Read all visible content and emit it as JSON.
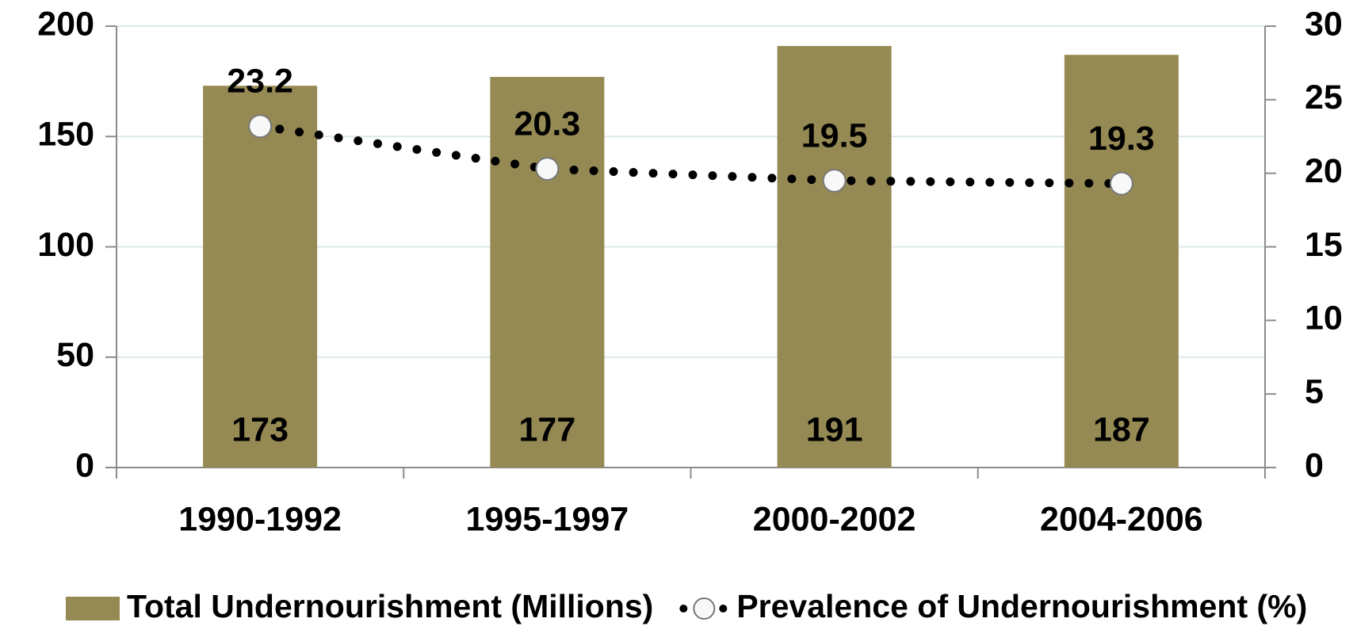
{
  "chart_data": {
    "type": "bar",
    "categories": [
      "1990-1992",
      "1995-1997",
      "2000-2002",
      "2004-2006"
    ],
    "series": [
      {
        "name": "Total Undernourishment (Millions)",
        "type": "bar",
        "color": "#968a54",
        "values": [
          173,
          177,
          191,
          187
        ]
      },
      {
        "name": "Prevalence of Undernourishment (%)",
        "type": "line",
        "axis": "y2",
        "color": "#000000",
        "values": [
          23.2,
          20.3,
          19.5,
          19.3
        ]
      }
    ],
    "ylim": [
      0,
      200
    ],
    "yticks": [
      0,
      50,
      100,
      150,
      200
    ],
    "y2lim": [
      0,
      30
    ],
    "y2ticks": [
      0,
      5,
      10,
      15,
      20,
      25,
      30
    ],
    "grid": true,
    "legend": "bottom"
  }
}
